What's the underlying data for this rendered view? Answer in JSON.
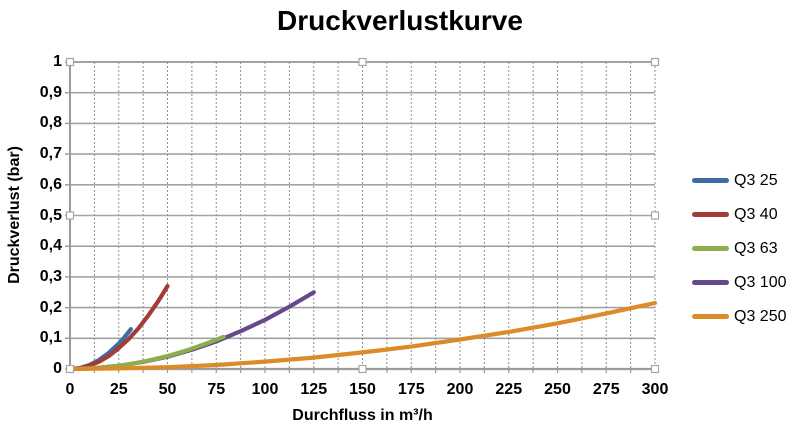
{
  "window": {
    "background": "#FFFFFF"
  },
  "chart_data": {
    "type": "line",
    "title": "Druckverlustkurve",
    "xlabel": "Durchfluss in m³/h",
    "ylabel": "Druckverlust (bar)",
    "xlim": [
      0,
      300
    ],
    "ylim": [
      0,
      1
    ],
    "x_ticks": [
      0,
      25,
      50,
      75,
      100,
      125,
      150,
      175,
      200,
      225,
      250,
      275,
      300
    ],
    "x_tick_labels": [
      "0",
      "25",
      "50",
      "75",
      "100",
      "125",
      "150",
      "175",
      "200",
      "225",
      "250",
      "275",
      "300"
    ],
    "x_minor_step": 12.5,
    "y_ticks": [
      0,
      0.1,
      0.2,
      0.3,
      0.4,
      0.5,
      0.6,
      0.7,
      0.8,
      0.9,
      1
    ],
    "y_tick_labels": [
      "0",
      "0,1",
      "0,2",
      "0,3",
      "0,4",
      "0,5",
      "0,6",
      "0,7",
      "0,8",
      "0,9",
      "1"
    ],
    "grid": {
      "horizontal": "solid",
      "vertical": "dashed"
    },
    "legend_position": "right",
    "selection_handles": true,
    "draw_order": [
      0,
      1,
      3,
      2,
      4
    ],
    "colors": {
      "grid_major": "#A3A3A3",
      "grid_minor_dashed": "#8E8E8E",
      "axis": "#9B9B9B",
      "handle_fill": "#FFFFFF",
      "handle_border": "#A6A6A6",
      "text": "#000000"
    },
    "series": [
      {
        "name": "Q3 25",
        "color": "#3E6DA5",
        "points": [
          [
            0,
            0
          ],
          [
            5,
            0.003
          ],
          [
            10,
            0.013
          ],
          [
            15,
            0.03
          ],
          [
            20,
            0.053
          ],
          [
            25,
            0.083
          ],
          [
            28,
            0.104
          ],
          [
            30,
            0.12
          ],
          [
            31.25,
            0.13
          ]
        ]
      },
      {
        "name": "Q3 40",
        "color": "#A23C36",
        "points": [
          [
            0,
            0
          ],
          [
            5,
            0.003
          ],
          [
            10,
            0.011
          ],
          [
            15,
            0.024
          ],
          [
            20,
            0.043
          ],
          [
            25,
            0.068
          ],
          [
            30,
            0.097
          ],
          [
            35,
            0.132
          ],
          [
            40,
            0.173
          ],
          [
            45,
            0.219
          ],
          [
            47.5,
            0.244
          ],
          [
            50,
            0.27
          ]
        ]
      },
      {
        "name": "Q3 63",
        "color": "#8EAE4C",
        "points": [
          [
            0,
            0
          ],
          [
            10,
            0.002
          ],
          [
            20,
            0.007
          ],
          [
            30,
            0.015
          ],
          [
            40,
            0.027
          ],
          [
            50,
            0.042
          ],
          [
            60,
            0.061
          ],
          [
            70,
            0.083
          ],
          [
            78.75,
            0.105
          ]
        ]
      },
      {
        "name": "Q3 100",
        "color": "#65498B",
        "points": [
          [
            0,
            0
          ],
          [
            12.5,
            0.003
          ],
          [
            25,
            0.01
          ],
          [
            37.5,
            0.023
          ],
          [
            50,
            0.04
          ],
          [
            62.5,
            0.063
          ],
          [
            75,
            0.09
          ],
          [
            87.5,
            0.123
          ],
          [
            100,
            0.16
          ],
          [
            112.5,
            0.203
          ],
          [
            125,
            0.25
          ]
        ]
      },
      {
        "name": "Q3 250",
        "color": "#DC8B29",
        "points": [
          [
            0,
            0
          ],
          [
            25,
            0.002
          ],
          [
            50,
            0.006
          ],
          [
            75,
            0.013
          ],
          [
            100,
            0.024
          ],
          [
            125,
            0.037
          ],
          [
            150,
            0.054
          ],
          [
            175,
            0.073
          ],
          [
            200,
            0.096
          ],
          [
            225,
            0.121
          ],
          [
            250,
            0.149
          ],
          [
            275,
            0.181
          ],
          [
            300,
            0.215
          ]
        ]
      }
    ]
  }
}
